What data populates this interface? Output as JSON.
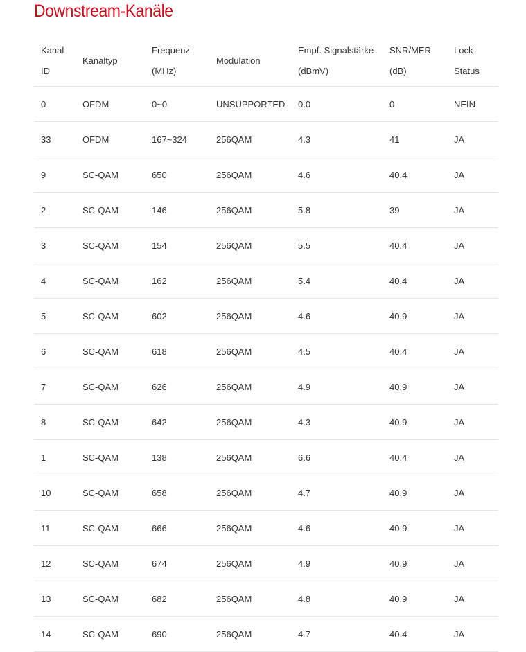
{
  "title": "Downstream-Kanäle",
  "headers": [
    [
      "Kanal",
      "ID"
    ],
    [
      "Kanaltyp",
      ""
    ],
    [
      "Frequenz",
      "(MHz)"
    ],
    [
      "Modulation",
      ""
    ],
    [
      "Empf. Signalstärke",
      "(dBmV)"
    ],
    [
      "SNR/MER",
      "(dB)"
    ],
    [
      "Lock",
      "Status"
    ]
  ],
  "rows": [
    [
      "0",
      "OFDM",
      "0~0",
      "UNSUPPORTED",
      "0.0",
      "0",
      "NEIN"
    ],
    [
      "33",
      "OFDM",
      "167~324",
      "256QAM",
      "4.3",
      "41",
      "JA"
    ],
    [
      "9",
      "SC-QAM",
      "650",
      "256QAM",
      "4.6",
      "40.4",
      "JA"
    ],
    [
      "2",
      "SC-QAM",
      "146",
      "256QAM",
      "5.8",
      "39",
      "JA"
    ],
    [
      "3",
      "SC-QAM",
      "154",
      "256QAM",
      "5.5",
      "40.4",
      "JA"
    ],
    [
      "4",
      "SC-QAM",
      "162",
      "256QAM",
      "5.4",
      "40.4",
      "JA"
    ],
    [
      "5",
      "SC-QAM",
      "602",
      "256QAM",
      "4.6",
      "40.9",
      "JA"
    ],
    [
      "6",
      "SC-QAM",
      "618",
      "256QAM",
      "4.5",
      "40.4",
      "JA"
    ],
    [
      "7",
      "SC-QAM",
      "626",
      "256QAM",
      "4.9",
      "40.9",
      "JA"
    ],
    [
      "8",
      "SC-QAM",
      "642",
      "256QAM",
      "4.3",
      "40.9",
      "JA"
    ],
    [
      "1",
      "SC-QAM",
      "138",
      "256QAM",
      "6.6",
      "40.4",
      "JA"
    ],
    [
      "10",
      "SC-QAM",
      "658",
      "256QAM",
      "4.7",
      "40.9",
      "JA"
    ],
    [
      "11",
      "SC-QAM",
      "666",
      "256QAM",
      "4.6",
      "40.9",
      "JA"
    ],
    [
      "12",
      "SC-QAM",
      "674",
      "256QAM",
      "4.9",
      "40.9",
      "JA"
    ],
    [
      "13",
      "SC-QAM",
      "682",
      "256QAM",
      "4.8",
      "40.9",
      "JA"
    ],
    [
      "14",
      "SC-QAM",
      "690",
      "256QAM",
      "4.7",
      "40.4",
      "JA"
    ]
  ]
}
